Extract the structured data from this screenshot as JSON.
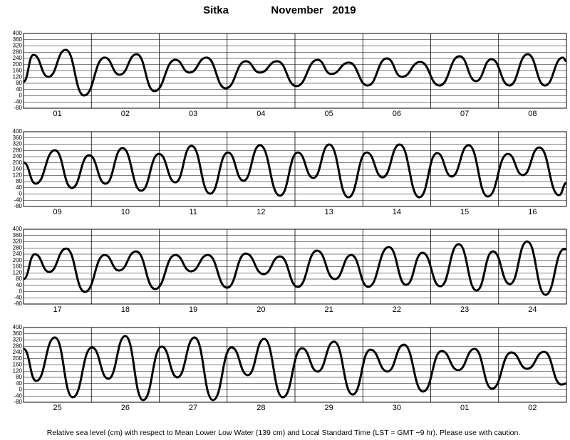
{
  "title": "Sitka",
  "month": "November   2019",
  "footnote": "Relative sea level (cm) with respect to Mean Lower Low Water (139 cm) and Local Standard Time (LST = GMT −9 hr). Please use with caution.",
  "chart_data": [
    {
      "type": "line",
      "color": "#000000",
      "categories": [
        "01",
        "02",
        "03",
        "04",
        "05",
        "06",
        "07",
        "08"
      ],
      "xlim": [
        0,
        192
      ],
      "ylim": [
        -80,
        400
      ],
      "yticks": [
        400,
        360,
        320,
        280,
        240,
        200,
        160,
        120,
        80,
        40,
        0,
        -40,
        -80
      ],
      "grid": true,
      "x": [
        0,
        3.5,
        8.8,
        14.9,
        21.4,
        28.7,
        34,
        40,
        46.3,
        53.7,
        58.7,
        64.7,
        71.5,
        78.6,
        83.6,
        89.7,
        96.5,
        104,
        108.8,
        115.1,
        121.7,
        128.5,
        133.8,
        140.3,
        147.1,
        154.2,
        160,
        165.5,
        171.8,
        178.3,
        184.4,
        190.7,
        192
      ],
      "values": [
        90,
        263,
        121,
        295,
        2,
        245,
        135,
        267,
        30,
        231,
        149,
        245,
        48,
        222,
        149,
        222,
        62,
        231,
        140,
        213,
        66,
        240,
        121,
        217,
        66,
        254,
        94,
        235,
        66,
        267,
        66,
        245,
        222
      ]
    },
    {
      "type": "line",
      "color": "#000000",
      "categories": [
        "09",
        "10",
        "11",
        "12",
        "13",
        "14",
        "15",
        "16"
      ],
      "xlim": [
        0,
        192
      ],
      "ylim": [
        -80,
        400
      ],
      "yticks": [
        400,
        360,
        320,
        280,
        240,
        200,
        160,
        120,
        80,
        40,
        0,
        -40,
        -80
      ],
      "grid": true,
      "x": [
        0,
        4.3,
        11.1,
        17.1,
        23.2,
        29,
        35,
        41.6,
        47.9,
        53.7,
        59.4,
        66,
        72.3,
        77.8,
        83.6,
        90.7,
        97,
        102.5,
        108.1,
        114.9,
        121.4,
        127,
        133,
        140,
        146.3,
        151.4,
        157.4,
        164.2,
        171.3,
        176.6,
        182.4,
        189.4,
        192
      ],
      "values": [
        203,
        66,
        281,
        39,
        249,
        66,
        295,
        21,
        258,
        75,
        309,
        2,
        267,
        85,
        313,
        -11,
        267,
        103,
        318,
        -21,
        267,
        107,
        318,
        -21,
        263,
        112,
        313,
        -16,
        258,
        121,
        299,
        -7,
        71
      ]
    },
    {
      "type": "line",
      "color": "#000000",
      "categories": [
        "17",
        "18",
        "19",
        "20",
        "21",
        "22",
        "23",
        "24"
      ],
      "xlim": [
        0,
        192
      ],
      "ylim": [
        -80,
        400
      ],
      "yticks": [
        400,
        360,
        320,
        280,
        240,
        200,
        160,
        120,
        80,
        40,
        0,
        -40,
        -80
      ],
      "grid": true,
      "x": [
        0,
        4,
        9.1,
        15.1,
        21.7,
        28.7,
        33.8,
        39.8,
        46.6,
        53.7,
        59.2,
        65.2,
        72,
        78.6,
        84.9,
        90.7,
        97,
        103.8,
        110.1,
        115.9,
        121.9,
        129.2,
        135.3,
        141.1,
        147.4,
        153.9,
        160.2,
        166,
        172,
        178.1,
        184.6,
        191.2,
        192
      ],
      "values": [
        80,
        240,
        126,
        276,
        -2,
        235,
        135,
        258,
        16,
        235,
        130,
        235,
        25,
        244,
        112,
        226,
        30,
        263,
        80,
        235,
        30,
        286,
        43,
        249,
        34,
        304,
        7,
        258,
        48,
        322,
        -21,
        272,
        272
      ]
    },
    {
      "type": "line",
      "color": "#000000",
      "categories": [
        "25",
        "26",
        "27",
        "28",
        "29",
        "30",
        "01",
        "02"
      ],
      "xlim": [
        0,
        192
      ],
      "ylim": [
        -80,
        400
      ],
      "yticks": [
        400,
        360,
        320,
        280,
        240,
        200,
        160,
        120,
        80,
        40,
        0,
        -40,
        -80
      ],
      "grid": true,
      "x": [
        0,
        4.5,
        11.1,
        17.4,
        24.2,
        30,
        36,
        42.3,
        48.9,
        54.4,
        60.5,
        67,
        73.6,
        79.3,
        85.1,
        91.7,
        98.5,
        104,
        109.8,
        116.4,
        122.7,
        128.7,
        134.5,
        141.3,
        147.9,
        153.7,
        159.5,
        165.7,
        172.5,
        178.1,
        184.1,
        190.2,
        192
      ],
      "values": [
        263,
        57,
        336,
        -48,
        272,
        71,
        345,
        -66,
        277,
        80,
        336,
        -66,
        272,
        94,
        327,
        -48,
        267,
        117,
        309,
        -30,
        258,
        117,
        290,
        -11,
        249,
        126,
        263,
        7,
        240,
        135,
        244,
        34,
        40
      ]
    }
  ]
}
